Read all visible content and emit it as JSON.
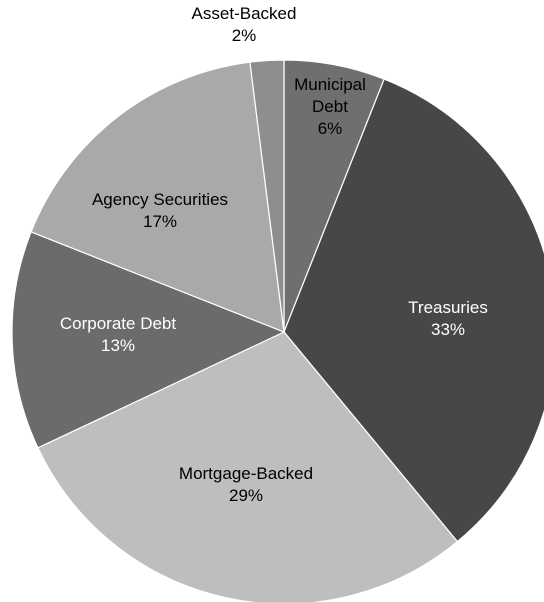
{
  "chart_data": {
    "type": "pie",
    "title": "",
    "start_at": "12 o'clock",
    "direction": "clockwise",
    "slices": [
      {
        "name_lines": [
          "Municipal",
          "Debt"
        ],
        "value": 6,
        "label": "6%",
        "color": "#6f6f71",
        "text_color": "#000000"
      },
      {
        "name_lines": [
          "Treasuries"
        ],
        "value": 33,
        "label": "33%",
        "color": "#474749",
        "text_color": "#ffffff"
      },
      {
        "name_lines": [
          "Mortgage-Backed"
        ],
        "value": 29,
        "label": "29%",
        "color": "#bdbec0",
        "text_color": "#000000"
      },
      {
        "name_lines": [
          "Corporate Debt"
        ],
        "value": 13,
        "label": "13%",
        "color": "#6b6b6d",
        "text_color": "#ffffff"
      },
      {
        "name_lines": [
          "Agency Securities"
        ],
        "value": 17,
        "label": "17%",
        "color": "#a8a9ab",
        "text_color": "#000000"
      },
      {
        "name_lines": [
          "Asset-Backed"
        ],
        "value": 2,
        "label": "2%",
        "color": "#8d8e90",
        "text_color": "#000000"
      }
    ]
  }
}
